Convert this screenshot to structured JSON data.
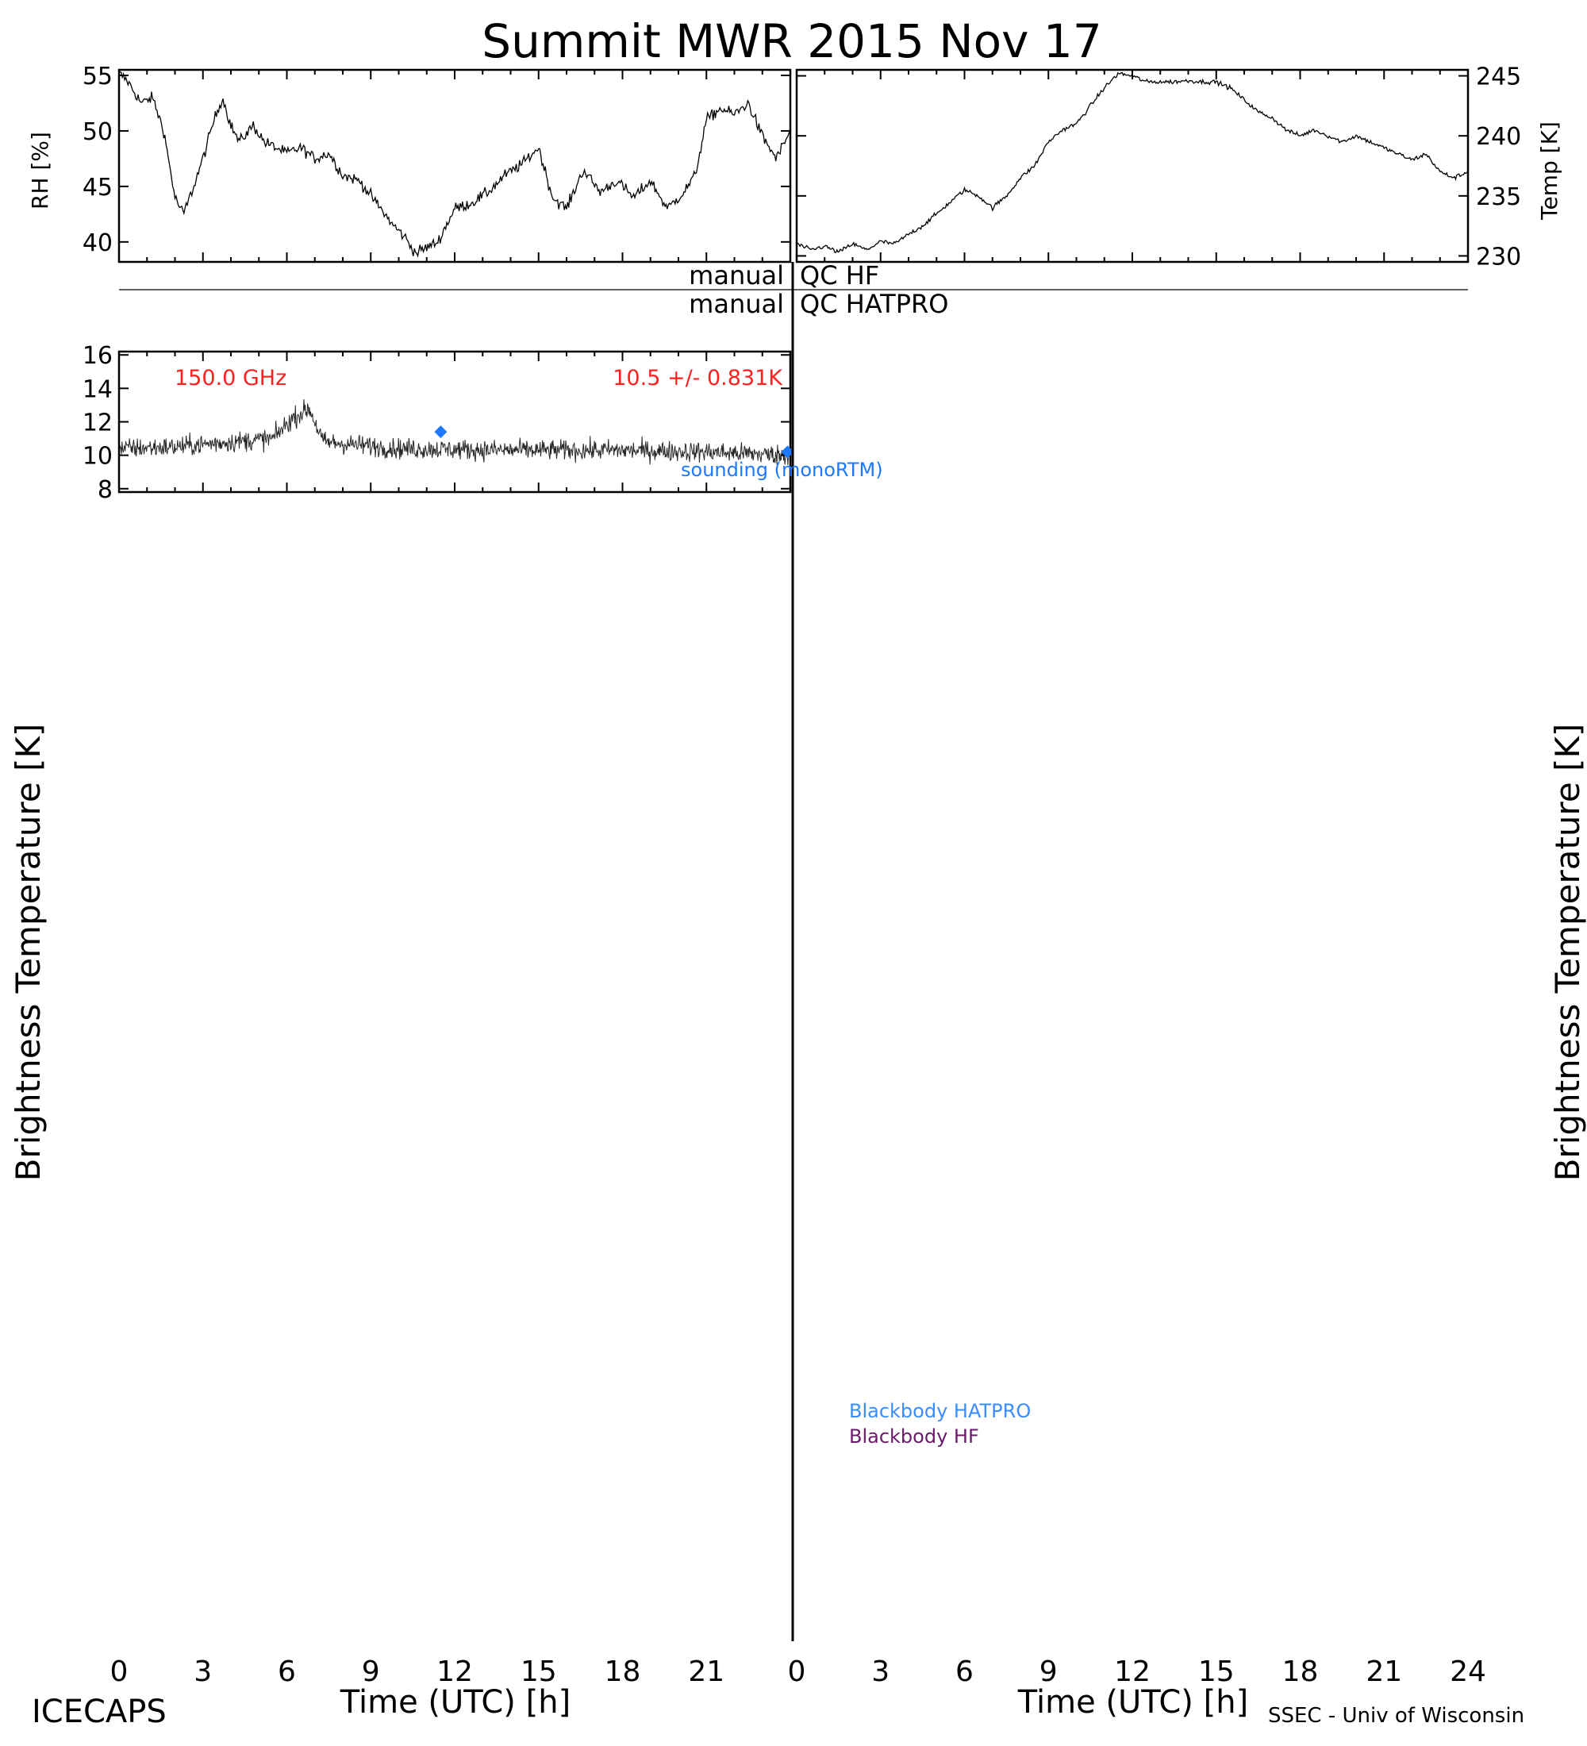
{
  "figure": {
    "title": "Summit MWR 2015 Nov 17",
    "footer_left": "ICECAPS",
    "footer_right": "SSEC - Univ of Wisconsin",
    "left_ylabel": "Brightness Temperature [K]",
    "right_ylabel": "Brightness Temperature [K]",
    "xlabel": "Time (UTC) [h]",
    "qc_labels": {
      "hf_left": "manual",
      "hf_right": "QC HF",
      "hatpro_left": "manual",
      "hatpro_right": "QC HATPRO"
    },
    "legend_sounding": "sounding (monoRTM)",
    "legend_bb_hatpro": "Blackbody HATPRO",
    "legend_bb_hf": "Blackbody HF",
    "colors": {
      "data": "#000000",
      "label": "#ff2020",
      "sounding": "#1e78ff",
      "bb_hatpro": "#3a8cff",
      "bb_hf": "#6a1a6a"
    }
  },
  "chart_data": [
    {
      "id": "rh",
      "type": "line",
      "ylabel": "RH [%]",
      "xlim": [
        0,
        24
      ],
      "ylim": [
        38.2,
        55.5
      ],
      "yticks": [
        40,
        45,
        50,
        55
      ],
      "x": [
        0,
        0.3,
        0.8,
        1.2,
        1.6,
        2.0,
        2.3,
        2.6,
        3.0,
        3.4,
        3.7,
        4.0,
        4.3,
        4.8,
        5.2,
        5.6,
        6.0,
        6.5,
        7.0,
        7.5,
        8.0,
        8.6,
        9.2,
        9.8,
        10.2,
        10.6,
        11.0,
        11.4,
        12.0,
        12.6,
        13.2,
        13.8,
        14.4,
        15.0,
        15.5,
        16.0,
        16.6,
        17.2,
        17.8,
        18.4,
        19.0,
        19.6,
        20.2,
        20.6,
        21.0,
        21.5,
        22.0,
        22.5,
        23.0,
        23.5,
        24.0
      ],
      "y": [
        55.2,
        54.5,
        52.5,
        53.0,
        50.0,
        44.0,
        42.5,
        44.5,
        47.5,
        51.0,
        53.0,
        50.5,
        49.0,
        50.5,
        49.0,
        48.5,
        48.0,
        48.5,
        47.5,
        48.0,
        46.0,
        45.5,
        43.5,
        41.5,
        40.5,
        39.0,
        39.5,
        40.0,
        43.0,
        43.5,
        44.5,
        46.0,
        47.0,
        48.5,
        44.0,
        43.0,
        46.5,
        44.5,
        45.5,
        44.0,
        45.5,
        43.0,
        44.5,
        46.0,
        51.0,
        52.0,
        51.5,
        52.5,
        49.5,
        47.5,
        50.0
      ]
    },
    {
      "id": "temp",
      "type": "line",
      "ylabel": "Temp [K]",
      "xlim": [
        0,
        24
      ],
      "ylim": [
        229.5,
        245.5
      ],
      "yticks": [
        230,
        235,
        240,
        245
      ],
      "x": [
        0,
        0.5,
        1.0,
        1.5,
        2.0,
        2.5,
        3.0,
        3.5,
        4.0,
        4.5,
        5.0,
        5.5,
        6.0,
        6.5,
        7.0,
        7.5,
        8.0,
        8.5,
        9.0,
        9.5,
        10.0,
        10.5,
        11.0,
        11.5,
        12.0,
        12.5,
        13.0,
        13.5,
        14.0,
        14.5,
        15.0,
        15.5,
        16.0,
        16.5,
        17.0,
        17.5,
        18.0,
        18.5,
        19.0,
        19.5,
        20.0,
        20.5,
        21.0,
        21.5,
        22.0,
        22.5,
        23.0,
        23.5,
        24.0
      ],
      "y": [
        231.0,
        230.5,
        230.8,
        230.3,
        231.0,
        230.5,
        231.2,
        231.0,
        231.8,
        232.5,
        233.5,
        234.5,
        235.5,
        235.0,
        234.0,
        235.0,
        236.5,
        237.5,
        239.5,
        240.5,
        241.0,
        242.5,
        244.0,
        245.2,
        245.0,
        244.5,
        244.5,
        244.5,
        244.6,
        244.5,
        244.5,
        244.0,
        243.0,
        242.0,
        241.5,
        240.5,
        240.0,
        240.5,
        240.0,
        239.5,
        240.0,
        239.5,
        239.0,
        238.5,
        238.0,
        238.5,
        237.0,
        236.5,
        237.0
      ]
    },
    {
      "id": "150.0",
      "type": "scatter",
      "label": "150.0 GHz",
      "stat": "10.5 +/- 0.831K",
      "ylim": [
        7.8,
        16.2
      ],
      "yticks": [
        8,
        10,
        12,
        14,
        16
      ],
      "yticklabels": [
        "8",
        "10",
        "12",
        "14",
        "16"
      ],
      "sounding": [
        [
          11.5,
          11.4
        ],
        [
          23.9,
          10.2
        ]
      ],
      "profile": [
        [
          0,
          10.4
        ],
        [
          2,
          10.5
        ],
        [
          4,
          10.8
        ],
        [
          5.5,
          11.0
        ],
        [
          6.2,
          12.2
        ],
        [
          6.8,
          12.8
        ],
        [
          7.3,
          10.8
        ],
        [
          10,
          10.4
        ],
        [
          14,
          10.3
        ],
        [
          18,
          10.3
        ],
        [
          21,
          10.2
        ],
        [
          24,
          10.0
        ]
      ],
      "noise": 0.6
    }
  ]
}
